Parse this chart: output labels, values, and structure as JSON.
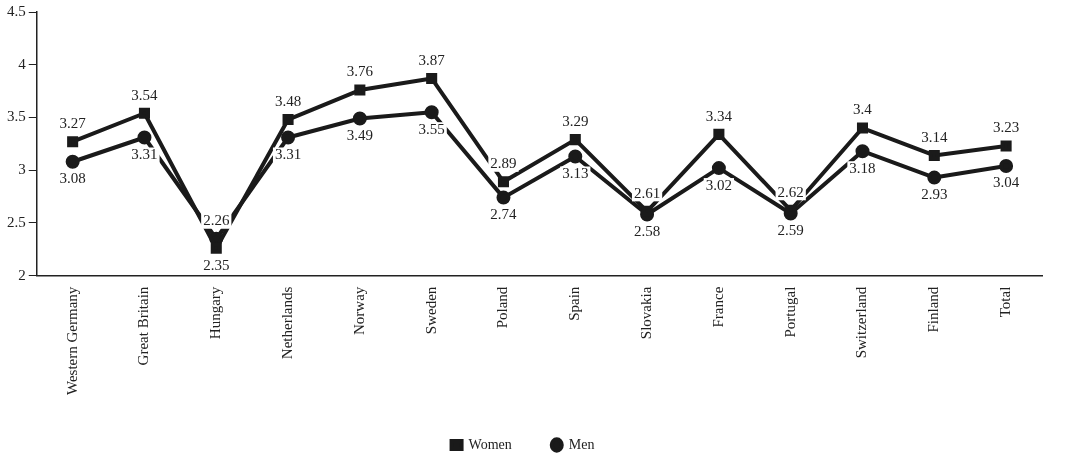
{
  "chart_data": {
    "type": "line",
    "categories": [
      "Western Germany",
      "Great Britain",
      "Hungary",
      "Netherlands",
      "Norway",
      "Sweden",
      "Poland",
      "Spain",
      "Slovakia",
      "France",
      "Portugal",
      "Switzerland",
      "Finland",
      "Total"
    ],
    "series": [
      {
        "name": "Women",
        "color": "#1a1a1a",
        "marker": "square",
        "values": [
          3.27,
          3.54,
          2.26,
          3.48,
          3.76,
          3.87,
          2.89,
          3.29,
          2.61,
          3.34,
          2.62,
          3.4,
          3.14,
          3.23
        ]
      },
      {
        "name": "Men",
        "color": "#1a1a1a",
        "marker": "circle",
        "values": [
          3.08,
          3.31,
          2.35,
          3.31,
          3.49,
          3.55,
          2.74,
          3.13,
          2.58,
          3.02,
          2.59,
          3.18,
          2.93,
          3.04
        ]
      }
    ],
    "ylim": [
      2,
      4.5
    ],
    "yticks": [
      2,
      2.5,
      3,
      3.5,
      4,
      4.5
    ],
    "grid": false,
    "legend": "bottom",
    "data_labels": true,
    "line_style": "solid"
  }
}
